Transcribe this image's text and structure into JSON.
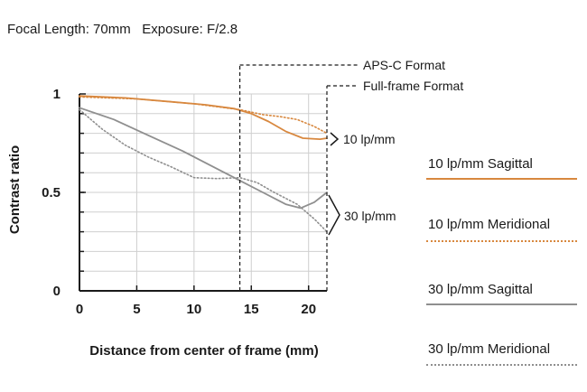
{
  "header": {
    "focal_length": "Focal Length: 70mm",
    "exposure": "Exposure: F/2.8"
  },
  "colors": {
    "orange": "#d8883f",
    "gray": "#8f8f8f",
    "axis": "#1a1a1a",
    "grid": "#cfcfcf"
  },
  "chart_data": {
    "type": "line",
    "xlabel": "Distance from center of frame (mm)",
    "ylabel": "Contrast ratio",
    "xlim": [
      0,
      21.6
    ],
    "ylim": [
      0,
      1
    ],
    "x_ticks": [
      "0",
      "5",
      "10",
      "15",
      "20"
    ],
    "y_ticks": [
      "0",
      "0.5",
      "1"
    ],
    "grid": true,
    "series": [
      {
        "name": "10 lp/mm Sagittal",
        "color": "#d8883f",
        "style": "solid",
        "points": [
          [
            0,
            0.99
          ],
          [
            4,
            0.98
          ],
          [
            8,
            0.96
          ],
          [
            11,
            0.945
          ],
          [
            13.5,
            0.925
          ],
          [
            15,
            0.9
          ],
          [
            16.5,
            0.86
          ],
          [
            18,
            0.81
          ],
          [
            19.5,
            0.775
          ],
          [
            21,
            0.77
          ],
          [
            21.6,
            0.775
          ]
        ]
      },
      {
        "name": "10 lp/mm Meridional",
        "color": "#d8883f",
        "style": "dotted",
        "points": [
          [
            0,
            0.985
          ],
          [
            5,
            0.975
          ],
          [
            10,
            0.95
          ],
          [
            14,
            0.92
          ],
          [
            16,
            0.895
          ],
          [
            17.5,
            0.885
          ],
          [
            19,
            0.87
          ],
          [
            20.5,
            0.835
          ],
          [
            21.6,
            0.8
          ]
        ]
      },
      {
        "name": "30 lp/mm Sagittal",
        "color": "#8f8f8f",
        "style": "solid",
        "points": [
          [
            0,
            0.93
          ],
          [
            3,
            0.87
          ],
          [
            6,
            0.79
          ],
          [
            9,
            0.71
          ],
          [
            12,
            0.62
          ],
          [
            14,
            0.56
          ],
          [
            16,
            0.5
          ],
          [
            18,
            0.44
          ],
          [
            19.3,
            0.42
          ],
          [
            20.5,
            0.45
          ],
          [
            21.6,
            0.5
          ]
        ]
      },
      {
        "name": "30 lp/mm Meridional",
        "color": "#8f8f8f",
        "style": "dotted",
        "points": [
          [
            0,
            0.92
          ],
          [
            2,
            0.82
          ],
          [
            4,
            0.74
          ],
          [
            6,
            0.68
          ],
          [
            8,
            0.63
          ],
          [
            10,
            0.575
          ],
          [
            12,
            0.57
          ],
          [
            14,
            0.575
          ],
          [
            15.5,
            0.55
          ],
          [
            17,
            0.5
          ],
          [
            19,
            0.44
          ],
          [
            20.5,
            0.365
          ],
          [
            21.6,
            0.3
          ]
        ]
      }
    ],
    "annotations": {
      "aps_c": {
        "label": "APS-C Format",
        "x": 14
      },
      "full_frame": {
        "label": "Full-frame Format",
        "x": 21.6
      },
      "bracket_10": "10 lp/mm",
      "bracket_30": "30 lp/mm"
    },
    "legend": [
      {
        "label": "10 lp/mm Sagittal",
        "color": "#d8883f",
        "style": "solid"
      },
      {
        "label": "10 lp/mm Meridional",
        "color": "#d8883f",
        "style": "dotted"
      },
      {
        "label": "30 lp/mm Sagittal",
        "color": "#8f8f8f",
        "style": "solid"
      },
      {
        "label": "30 lp/mm Meridional",
        "color": "#8f8f8f",
        "style": "dotted"
      }
    ],
    "legend_position": "right"
  }
}
